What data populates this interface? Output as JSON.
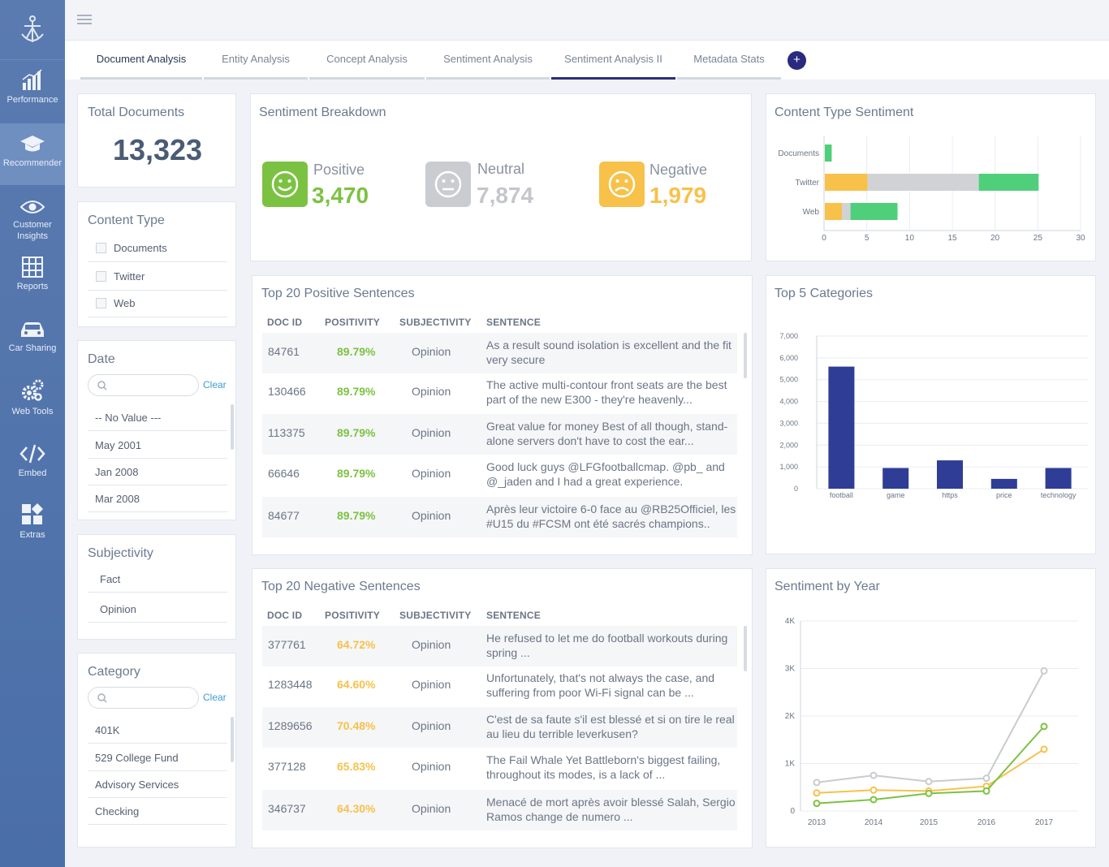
{
  "sidebar": {
    "items": [
      {
        "label": "Performance",
        "icon": "bar-chart-icon"
      },
      {
        "label": "Recommender",
        "icon": "graduation-cap-icon"
      },
      {
        "label": "Customer Insights",
        "icon": "eye-icon"
      },
      {
        "label": "Reports",
        "icon": "table-icon"
      },
      {
        "label": "Car Sharing",
        "icon": "car-icon"
      },
      {
        "label": "Web Tools",
        "icon": "gears-icon"
      },
      {
        "label": "Embed",
        "icon": "code-icon"
      },
      {
        "label": "Extras",
        "icon": "extras-icon"
      }
    ]
  },
  "tabs": [
    {
      "label": "Document Analysis"
    },
    {
      "label": "Entity Analysis"
    },
    {
      "label": "Concept Analysis"
    },
    {
      "label": "Sentiment Analysis"
    },
    {
      "label": "Sentiment Analysis II"
    },
    {
      "label": "Metadata Stats"
    }
  ],
  "tab_add_label": "+",
  "total_docs": {
    "title": "Total Documents",
    "value": "13,323"
  },
  "content_type": {
    "title": "Content Type",
    "options": [
      "Documents",
      "Twitter",
      "Web"
    ]
  },
  "date": {
    "title": "Date",
    "clear": "Clear",
    "options": [
      "-- No Value ---",
      "May 2001",
      "Jan 2008",
      "Mar 2008"
    ]
  },
  "subjectivity": {
    "title": "Subjectivity",
    "options": [
      "Fact",
      "Opinion"
    ]
  },
  "category": {
    "title": "Category",
    "clear": "Clear",
    "options": [
      "401K",
      "529 College Fund",
      "Advisory Services",
      "Checking"
    ]
  },
  "sentiment_breakdown": {
    "title": "Sentiment Breakdown",
    "positive": {
      "label": "Positive",
      "value": "3,470",
      "color": "#7cc242"
    },
    "neutral": {
      "label": "Neutral",
      "value": "7,874",
      "color": "#c9ccd1"
    },
    "negative": {
      "label": "Negative",
      "value": "1,979",
      "color": "#f7c14a"
    }
  },
  "positive_table": {
    "title": "Top 20 Positive Sentences",
    "headers": [
      "DOC ID",
      "POSITIVITY",
      "SUBJECTIVITY",
      "SENTENCE"
    ],
    "rows": [
      {
        "id": "84761",
        "pos": "89.79%",
        "sub": "Opinion",
        "sentence": "As a result sound isolation is excellent and the fit very secure"
      },
      {
        "id": "130466",
        "pos": "89.79%",
        "sub": "Opinion",
        "sentence": "The active multi-contour front seats are the best part of the new E300 - they're heavenly..."
      },
      {
        "id": "113375",
        "pos": "89.79%",
        "sub": "Opinion",
        "sentence": "Great value for money Best of all though, stand-alone servers don't have to cost the ear..."
      },
      {
        "id": "66646",
        "pos": "89.79%",
        "sub": "Opinion",
        "sentence": "Good luck guys @LFGfootballcmap. @pb_ and @_jaden and I had a great experience."
      },
      {
        "id": "84677",
        "pos": "89.79%",
        "sub": "Opinion",
        "sentence": "Après leur victoire 6-0 face au @RB25Officiel, les #U15 du #FCSM ont été sacrés champions.."
      }
    ]
  },
  "negative_table": {
    "title": "Top 20 Negative Sentences",
    "headers": [
      "DOC ID",
      "POSITIVITY",
      "SUBJECTIVITY",
      "SENTENCE"
    ],
    "rows": [
      {
        "id": "377761",
        "pos": "64.72%",
        "sub": "Opinion",
        "sentence": "He refused to let me do football workouts during spring ..."
      },
      {
        "id": "1283448",
        "pos": "64.60%",
        "sub": "Opinion",
        "sentence": "Unfortunately, that's not always the case, and suffering from poor Wi-Fi signal can be ..."
      },
      {
        "id": "1289656",
        "pos": "70.48%",
        "sub": "Opinion",
        "sentence": "C'est de sa faute s'il est blessé et si on tire le real au lieu du terrible leverkusen?"
      },
      {
        "id": "377128",
        "pos": "65.83%",
        "sub": "Opinion",
        "sentence": "The Fail Whale Yet Battleborn's biggest failing, throughout its modes, is a lack of ..."
      },
      {
        "id": "346737",
        "pos": "64.30%",
        "sub": "Opinion",
        "sentence": "Menacé de mort après avoir blessé Salah, Sergio Ramos change de numero ..."
      }
    ]
  },
  "chart_data": [
    {
      "type": "bar",
      "orientation": "horizontal",
      "stacked": true,
      "title": "Content Type Sentiment",
      "categories": [
        "Documents",
        "Twitter",
        "Web"
      ],
      "series": [
        {
          "color": "#f7c14a",
          "values": [
            0,
            5,
            2
          ]
        },
        {
          "color": "#d0d2d6",
          "values": [
            0,
            13,
            1
          ]
        },
        {
          "color": "#4fcf7a",
          "values": [
            0.8,
            7,
            5.5
          ]
        }
      ],
      "xlim": [
        0,
        30
      ],
      "xticks": [
        "0",
        "5",
        "10",
        "15",
        "20",
        "25",
        "30"
      ]
    },
    {
      "type": "bar",
      "title": "Top 5 Categories",
      "categories": [
        "football",
        "game",
        "https",
        "price",
        "technology"
      ],
      "values": [
        5600,
        950,
        1300,
        450,
        950
      ],
      "color": "#2f3d96",
      "ylim": [
        0,
        7000
      ],
      "yticks": [
        "0",
        "1,000",
        "2,000",
        "3,000",
        "4,000",
        "5,000",
        "6,000",
        "7,000"
      ]
    },
    {
      "type": "line",
      "title": "Sentiment by Year",
      "x": [
        "2013",
        "2014",
        "2015",
        "2016",
        "2017"
      ],
      "series": [
        {
          "color": "#c9cbd0",
          "values": [
            600,
            750,
            620,
            690,
            2950
          ]
        },
        {
          "color": "#f7c14a",
          "values": [
            380,
            440,
            420,
            520,
            1300
          ]
        },
        {
          "color": "#7cc242",
          "values": [
            160,
            240,
            370,
            420,
            1780
          ]
        }
      ],
      "ylim": [
        0,
        4000
      ],
      "yticks": [
        "0",
        "1K",
        "2K",
        "3K",
        "4K"
      ]
    }
  ]
}
